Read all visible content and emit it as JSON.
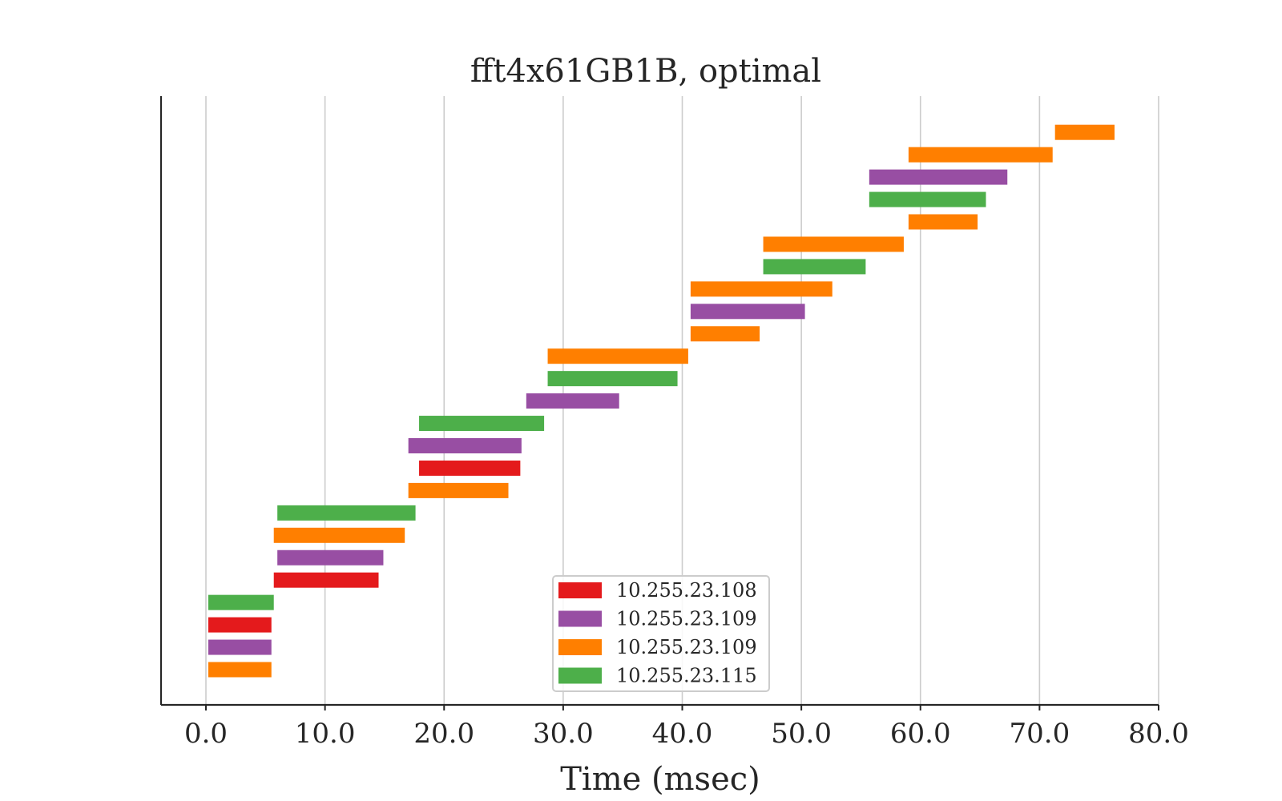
{
  "chart_data": {
    "type": "bar",
    "orientation": "horizontal-gantt",
    "title": "fft4x61GB1B, optimal",
    "xlabel": "Time (msec)",
    "ylabel": "",
    "xlim": [
      -3.8,
      80.0
    ],
    "xticks": [
      0,
      10,
      20,
      30,
      40,
      50,
      60,
      70,
      80
    ],
    "xtick_labels": [
      "0.0",
      "10.0",
      "20.0",
      "30.0",
      "40.0",
      "50.0",
      "60.0",
      "70.0",
      "80.0"
    ],
    "grid": "vertical",
    "legend_position": "bottom-center",
    "series": [
      {
        "label": "10.255.23.108",
        "color": "#e41a1c"
      },
      {
        "label": "10.255.23.109",
        "color": "#984ea3"
      },
      {
        "label": "10.255.23.109",
        "color": "#ff7f00"
      },
      {
        "label": "10.255.23.115",
        "color": "#4daf4a"
      }
    ],
    "tasks": [
      {
        "series": 2,
        "start": 0.2,
        "end": 5.5
      },
      {
        "series": 1,
        "start": 0.2,
        "end": 5.5
      },
      {
        "series": 0,
        "start": 0.2,
        "end": 5.5
      },
      {
        "series": 3,
        "start": 0.2,
        "end": 5.7
      },
      {
        "series": 0,
        "start": 5.7,
        "end": 14.5
      },
      {
        "series": 1,
        "start": 6.0,
        "end": 14.9
      },
      {
        "series": 2,
        "start": 5.7,
        "end": 16.7
      },
      {
        "series": 3,
        "start": 6.0,
        "end": 17.6
      },
      {
        "series": 2,
        "start": 17.0,
        "end": 25.4
      },
      {
        "series": 0,
        "start": 17.9,
        "end": 26.4
      },
      {
        "series": 1,
        "start": 17.0,
        "end": 26.5
      },
      {
        "series": 3,
        "start": 17.9,
        "end": 28.4
      },
      {
        "series": 1,
        "start": 26.9,
        "end": 34.7
      },
      {
        "series": 3,
        "start": 28.7,
        "end": 39.6
      },
      {
        "series": 2,
        "start": 28.7,
        "end": 40.5
      },
      {
        "series": 2,
        "start": 40.7,
        "end": 46.5
      },
      {
        "series": 1,
        "start": 40.7,
        "end": 50.3
      },
      {
        "series": 2,
        "start": 40.7,
        "end": 52.6
      },
      {
        "series": 3,
        "start": 46.8,
        "end": 55.4
      },
      {
        "series": 2,
        "start": 46.8,
        "end": 58.6
      },
      {
        "series": 2,
        "start": 59.0,
        "end": 64.8
      },
      {
        "series": 3,
        "start": 55.7,
        "end": 65.5
      },
      {
        "series": 1,
        "start": 55.7,
        "end": 67.3
      },
      {
        "series": 2,
        "start": 59.0,
        "end": 71.1
      },
      {
        "series": 2,
        "start": 71.3,
        "end": 76.3
      }
    ]
  }
}
